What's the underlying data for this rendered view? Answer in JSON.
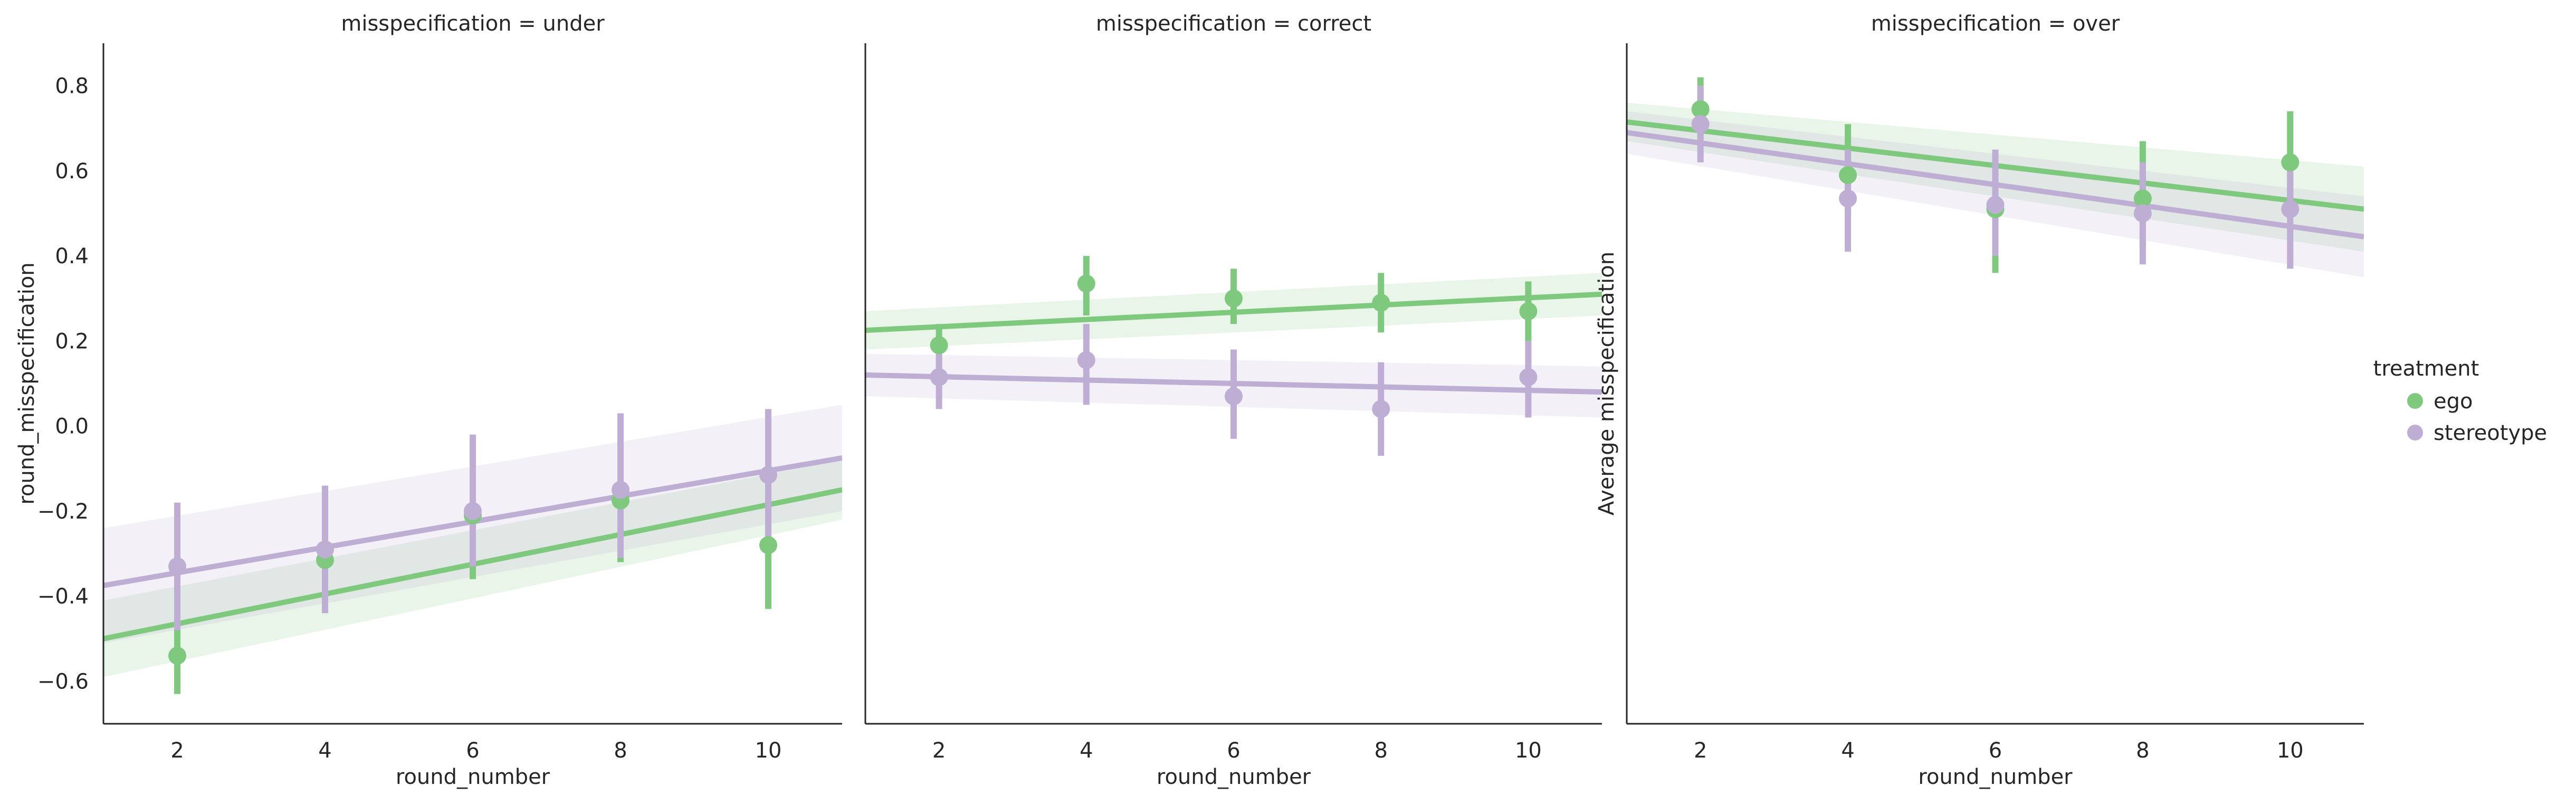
{
  "chart_data": {
    "type": "scatter",
    "y_label_left": "round_misspecification",
    "y_label_mid": "Average misspecification",
    "x_label": "round_number",
    "xlim": [
      1,
      11
    ],
    "ylim": [
      -0.7,
      0.9
    ],
    "x_ticks": [
      2,
      4,
      6,
      8,
      10
    ],
    "x_tick_labels": [
      "2",
      "4",
      "6",
      "8",
      "10"
    ],
    "y_ticks": [
      -0.6,
      -0.4,
      -0.2,
      0.0,
      0.2,
      0.4,
      0.6,
      0.8
    ],
    "y_tick_labels": [
      "−0.6",
      "−0.4",
      "−0.2",
      "0.0",
      "0.2",
      "0.4",
      "0.6",
      "0.8"
    ],
    "grid": false,
    "legend": {
      "title": "treatment",
      "placement": "right",
      "entries": [
        {
          "label": "ego",
          "color": "#7fc97f"
        },
        {
          "label": "stereotype",
          "color": "#beaed4"
        }
      ]
    },
    "panels": [
      {
        "title": "misspecification = under",
        "series": [
          {
            "name": "ego",
            "color": "#7fc97f",
            "x": [
              2,
              4,
              6,
              8,
              10
            ],
            "y": [
              -0.54,
              -0.315,
              -0.21,
              -0.175,
              -0.28
            ],
            "err_low": [
              -0.63,
              -0.42,
              -0.36,
              -0.32,
              -0.43
            ],
            "err_high": [
              -0.43,
              -0.2,
              -0.07,
              -0.03,
              -0.13
            ],
            "fit_start": -0.5,
            "fit_end": -0.15,
            "band_start": [
              -0.59,
              -0.41
            ],
            "band_end": [
              -0.22,
              -0.08
            ]
          },
          {
            "name": "stereotype",
            "color": "#beaed4",
            "x": [
              2,
              4,
              6,
              8,
              10
            ],
            "y": [
              -0.33,
              -0.29,
              -0.2,
              -0.15,
              -0.115
            ],
            "err_low": [
              -0.48,
              -0.44,
              -0.33,
              -0.31,
              -0.28
            ],
            "err_high": [
              -0.18,
              -0.14,
              -0.02,
              0.03,
              0.04
            ],
            "fit_start": -0.375,
            "fit_end": -0.075,
            "band_start": [
              -0.51,
              -0.24
            ],
            "band_end": [
              -0.2,
              0.05
            ]
          }
        ]
      },
      {
        "title": "misspecification = correct",
        "series": [
          {
            "name": "ego",
            "color": "#7fc97f",
            "x": [
              2,
              4,
              6,
              8,
              10
            ],
            "y": [
              0.19,
              0.335,
              0.3,
              0.29,
              0.27
            ],
            "err_low": [
              0.12,
              0.26,
              0.24,
              0.22,
              0.2
            ],
            "err_high": [
              0.24,
              0.4,
              0.37,
              0.36,
              0.34
            ],
            "fit_start": 0.225,
            "fit_end": 0.31,
            "band_start": [
              0.18,
              0.27
            ],
            "band_end": [
              0.26,
              0.36
            ]
          },
          {
            "name": "stereotype",
            "color": "#beaed4",
            "x": [
              2,
              4,
              6,
              8,
              10
            ],
            "y": [
              0.115,
              0.155,
              0.07,
              0.04,
              0.115
            ],
            "err_low": [
              0.04,
              0.05,
              -0.03,
              -0.07,
              0.02
            ],
            "err_high": [
              0.19,
              0.24,
              0.18,
              0.15,
              0.2
            ],
            "fit_start": 0.12,
            "fit_end": 0.08,
            "band_start": [
              0.07,
              0.17
            ],
            "band_end": [
              0.02,
              0.14
            ]
          }
        ]
      },
      {
        "title": "misspecification = over",
        "series": [
          {
            "name": "ego",
            "color": "#7fc97f",
            "x": [
              2,
              4,
              6,
              8,
              10
            ],
            "y": [
              0.745,
              0.59,
              0.51,
              0.535,
              0.62
            ],
            "err_low": [
              0.67,
              0.5,
              0.36,
              0.42,
              0.5
            ],
            "err_high": [
              0.82,
              0.71,
              0.63,
              0.67,
              0.74
            ],
            "fit_start": 0.715,
            "fit_end": 0.51,
            "band_start": [
              0.67,
              0.76
            ],
            "band_end": [
              0.41,
              0.61
            ]
          },
          {
            "name": "stereotype",
            "color": "#beaed4",
            "x": [
              2,
              4,
              6,
              8,
              10
            ],
            "y": [
              0.71,
              0.535,
              0.52,
              0.5,
              0.51
            ],
            "err_low": [
              0.62,
              0.41,
              0.4,
              0.38,
              0.37
            ],
            "err_high": [
              0.8,
              0.65,
              0.65,
              0.62,
              0.63
            ],
            "fit_start": 0.69,
            "fit_end": 0.445,
            "band_start": [
              0.64,
              0.74
            ],
            "band_end": [
              0.35,
              0.54
            ]
          }
        ]
      }
    ]
  }
}
